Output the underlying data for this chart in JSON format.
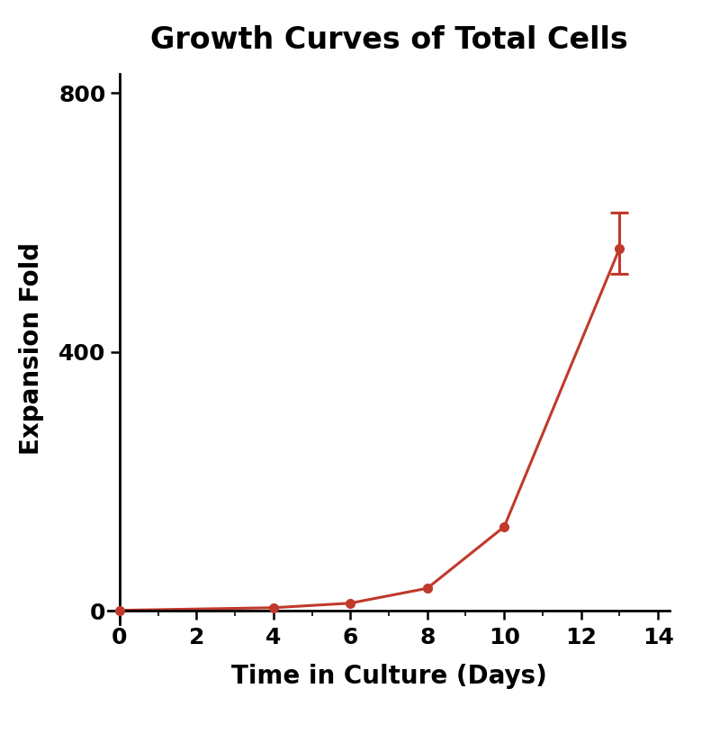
{
  "title": "Growth Curves of Total Cells",
  "xlabel": "Time in Culture (Days)",
  "ylabel": "Expansion Fold",
  "x": [
    0,
    4,
    6,
    8,
    10,
    13
  ],
  "y": [
    1,
    5,
    12,
    35,
    130,
    560
  ],
  "yerr_lower": [
    0,
    0,
    0,
    0,
    0,
    40
  ],
  "yerr_upper": [
    0,
    0,
    0,
    0,
    0,
    55
  ],
  "line_color": "#C0392B",
  "marker_color": "#C0392B",
  "marker_size": 8,
  "line_width": 2.2,
  "xlim": [
    -0.3,
    14.3
  ],
  "ylim": [
    -20,
    830
  ],
  "yticks": [
    0,
    400,
    800
  ],
  "xticks": [
    0,
    2,
    4,
    6,
    8,
    10,
    12,
    14
  ],
  "title_fontsize": 24,
  "label_fontsize": 20,
  "tick_fontsize": 18,
  "background_color": "#ffffff"
}
